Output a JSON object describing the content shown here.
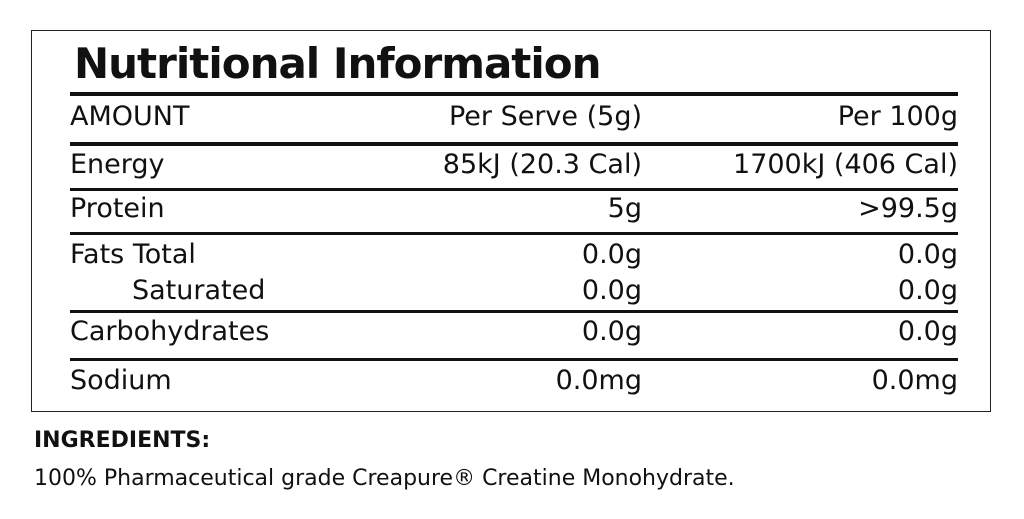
{
  "title": "Nutritional Information",
  "table": {
    "header": [
      "AMOUNT",
      "Per Serve (5g)",
      "Per 100g"
    ],
    "rows": [
      [
        "Energy",
        "85kJ (20.3 Cal)",
        "1700kJ (406 Cal)"
      ],
      [
        "Protein",
        "5g",
        ">99.5g"
      ],
      [
        "Fats Total",
        "0.0g",
        "0.0g"
      ],
      [
        "Saturated",
        "0.0g",
        "0.0g"
      ],
      [
        "Carbohydrates",
        "0.0g",
        "0.0g"
      ],
      [
        "Sodium",
        "0.0mg",
        "0.0mg"
      ]
    ]
  },
  "ingredients": {
    "heading": "INGREDIENTS:",
    "text": "100% Pharmaceutical grade Creapure® Creatine Monohydrate."
  }
}
